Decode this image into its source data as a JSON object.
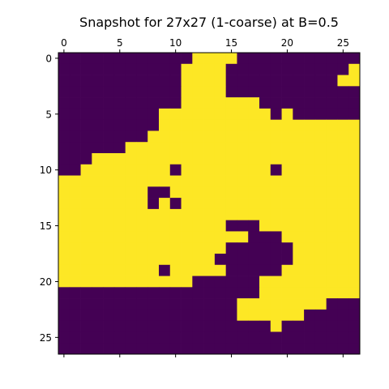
{
  "chart_data": {
    "type": "heatmap",
    "title": "Snapshot for 27x27 (1-coarse) at B=0.5",
    "xlabel": "",
    "ylabel": "",
    "x_ticks": [
      0,
      5,
      10,
      15,
      20,
      25
    ],
    "y_ticks": [
      0,
      5,
      10,
      15,
      20,
      25
    ],
    "x_tick_position": "top-and-bottom",
    "y_tick_position": "left",
    "xlim": [
      -0.5,
      26.5
    ],
    "ylim": [
      26.5,
      -0.5
    ],
    "grid": false,
    "legend": "none",
    "colors": {
      "0": "#440154",
      "1": "#fde725"
    },
    "rows": [
      "000000000000111100000000000",
      "000000000001111000000000001",
      "000000000001111000000000011",
      "000000000001111000000000000",
      "000000000001111111000000000",
      "000000000111111111101000000",
      "000000000111111111111111111",
      "000000001111111111111111111",
      "000000111111111111111111111",
      "000111111111111111111111111",
      "001111111101111111101111111",
      "111111111111111111111111111",
      "111111110011111111111111111",
      "111111110101111111111111111",
      "111111111111111111111111111",
      "111111111111111000111111111",
      "111111111111111110001111111",
      "111111111111111000000111111",
      "111111111111110000000111111",
      "111111111011111000001111111",
      "111111111111000000111111111",
      "000000000000000000111111111",
      "000000000000000011111111000",
      "000000000000000011111100000",
      "000000000000000000010000000",
      "000000000000000000000000000",
      "000000000000000000000000000"
    ]
  }
}
